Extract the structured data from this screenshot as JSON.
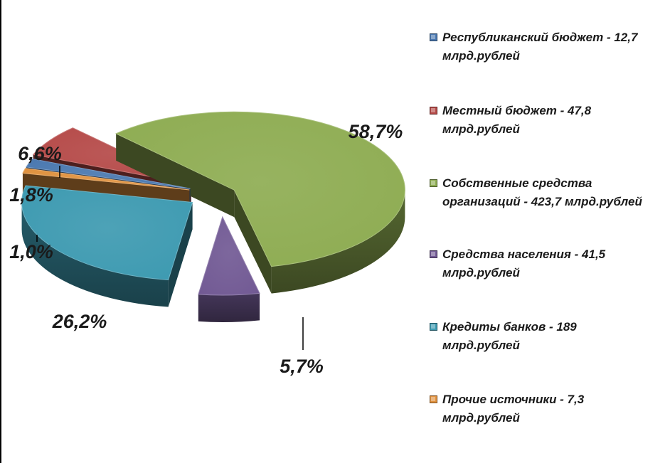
{
  "chart_data": {
    "type": "pie",
    "title": "",
    "series": [
      {
        "name": "Республиканский бюджет",
        "legend": "Республиканский бюджет - 12,7\nмлрд.рублей",
        "value": 12.7,
        "percent_label": "1,8%",
        "color": "#4a78b0"
      },
      {
        "name": "Местный бюджет",
        "legend": "Местный бюджет - 47,8\nмлрд.рублей",
        "value": 47.8,
        "percent_label": "6,6%",
        "color": "#b54a48"
      },
      {
        "name": "Собственные средства организаций",
        "legend": "Собственные средства\nорганизаций - 423,7 млрд.рублей",
        "value": 423.7,
        "percent_label": "58,7%",
        "color": "#8eac52"
      },
      {
        "name": "Средства населения",
        "legend": "Средства населения - 41,5\nмлрд.рублей",
        "value": 41.5,
        "percent_label": "5,7%",
        "color": "#725a94"
      },
      {
        "name": "Кредиты банков",
        "legend": "Кредиты банков - 189\nмлрд.рублей",
        "value": 189,
        "percent_label": "26,2%",
        "color": "#3d9ab1"
      },
      {
        "name": "Прочие источники",
        "legend": "Прочие источники - 7,3\nмлрд.рублей",
        "value": 7.3,
        "percent_label": "1,0%",
        "color": "#e0913e"
      }
    ],
    "legend_position": "right"
  }
}
